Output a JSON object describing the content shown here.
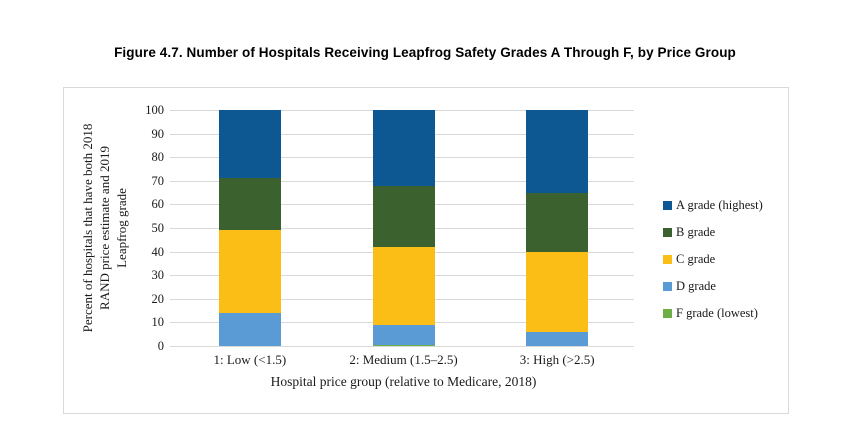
{
  "figure": {
    "title": "Figure 4.7. Number of Hospitals Receiving Leapfrog Safety Grades A Through F, by Price Group"
  },
  "chart_data": {
    "type": "bar",
    "stacked": true,
    "categories": [
      "1: Low (<1.5)",
      "2: Medium (1.5–2.5)",
      "3: High (>2.5)"
    ],
    "series": [
      {
        "name": "F grade (lowest)",
        "color": "#6fad46",
        "values": [
          0,
          0.5,
          0
        ]
      },
      {
        "name": "D grade",
        "color": "#5b9bd5",
        "values": [
          14,
          8.5,
          6
        ]
      },
      {
        "name": "C grade",
        "color": "#fbbe16",
        "values": [
          35,
          33,
          34
        ]
      },
      {
        "name": "B grade",
        "color": "#3b612e",
        "values": [
          22,
          26,
          25
        ]
      },
      {
        "name": "A grade (highest)",
        "color": "#0d5793",
        "values": [
          29,
          32,
          35
        ]
      }
    ],
    "legend": {
      "position": "right",
      "order": [
        "A grade (highest)",
        "B grade",
        "C grade",
        "D grade",
        "F grade (lowest)"
      ]
    },
    "xlabel": "Hospital price group (relative to Medicare, 2018)",
    "ylabel_lines": [
      "Percent of hospitals that have both 2018",
      "RAND price estimate and 2019",
      "Leapfrog grade"
    ],
    "ylim": [
      0,
      100
    ],
    "ytick_step": 10,
    "grid": "horizontal",
    "palette": {
      "gridline": "#d9d9d9",
      "chart_border": "#d9d9d9",
      "text": "#1a1a1a",
      "background": "#ffffff"
    }
  }
}
